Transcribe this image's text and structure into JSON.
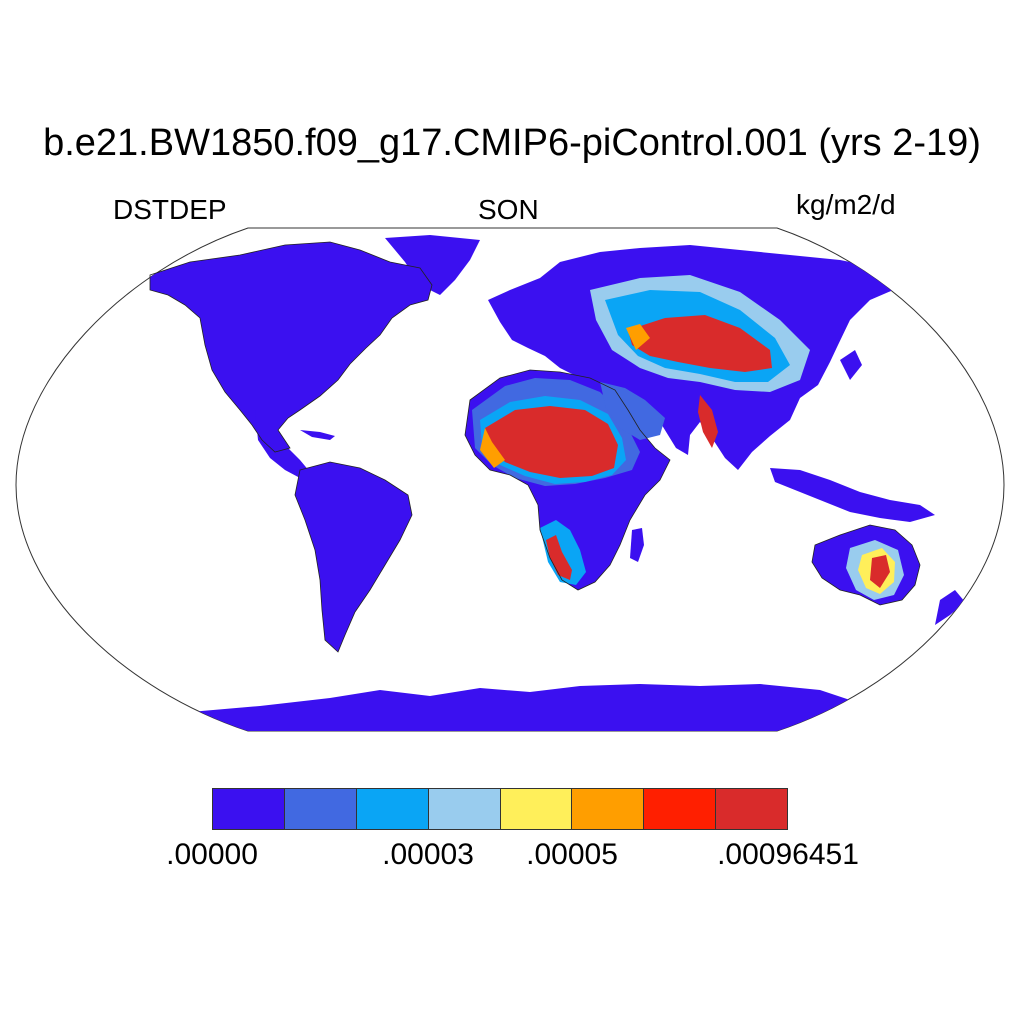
{
  "title": "b.e21.BW1850.f09_g17.CMIP6-piControl.001 (yrs 2-19)",
  "left_label": "DSTDEP",
  "center_label": "SON",
  "right_label": "kg/m2/d",
  "colorbar": {
    "colors": [
      "#3b10f0",
      "#4169e1",
      "#0aa5f5",
      "#99ccee",
      "#ffef5a",
      "#ff9e00",
      "#ff1f00",
      "#d92b2b"
    ],
    "labels": [
      ".00000",
      ".00003",
      ".00005",
      ".00096451"
    ]
  },
  "map": {
    "projection": "Robinson",
    "land_color": "#3b10f0",
    "ocean_color": "#ffffff"
  }
}
